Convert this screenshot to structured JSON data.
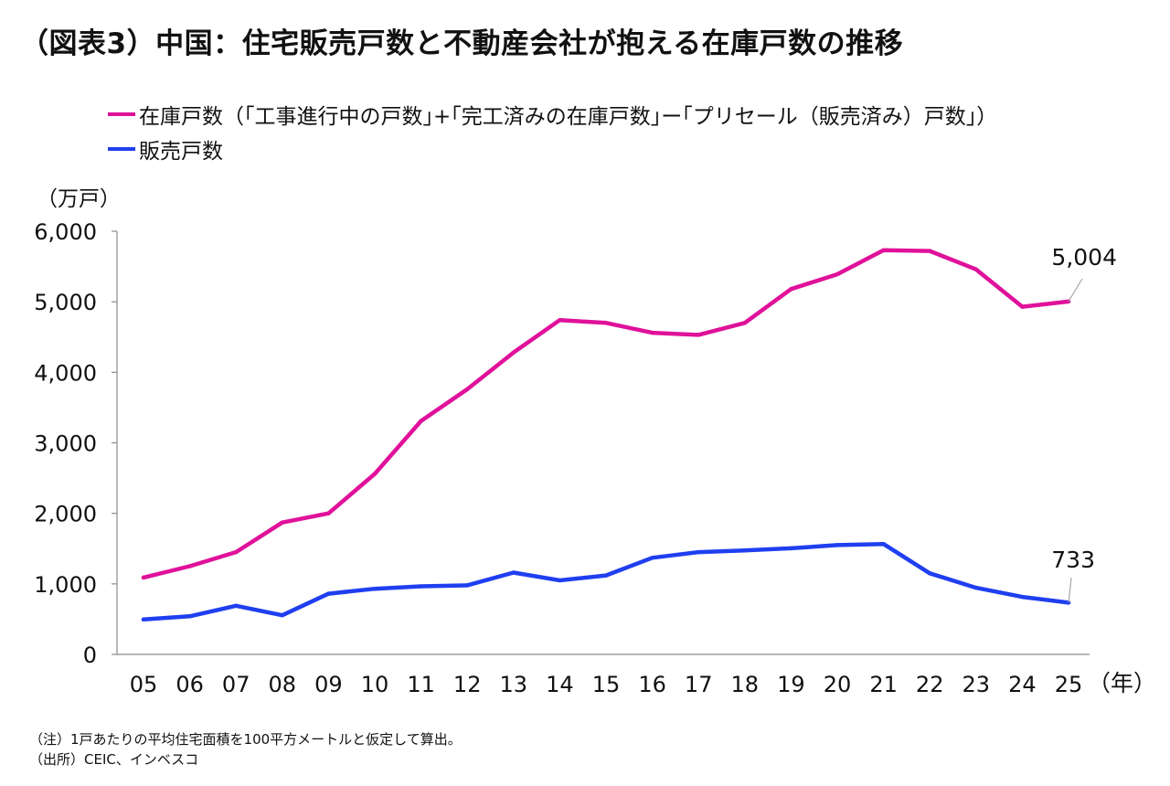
{
  "title": "（図表3）中国：住宅販売戸数と不動産会社が抱える在庫戸数の推移",
  "chart_data": {
    "type": "line",
    "categories": [
      "05",
      "06",
      "07",
      "08",
      "09",
      "10",
      "11",
      "12",
      "13",
      "14",
      "15",
      "16",
      "17",
      "18",
      "19",
      "20",
      "21",
      "22",
      "23",
      "24",
      "25"
    ],
    "series": [
      {
        "name": "在庫戸数（｢工事進行中の戸数｣+｢完工済みの在庫戸数｣ー｢プリセール（販売済み）戸数｣）",
        "color": "#e0119a",
        "values": [
          1090,
          1250,
          1450,
          1870,
          2000,
          2560,
          3310,
          3760,
          4280,
          4740,
          4700,
          4560,
          4530,
          4700,
          5180,
          5390,
          5730,
          5720,
          5460,
          4930,
          5004
        ],
        "end_label": "5,004"
      },
      {
        "name": "販売戸数",
        "color": "#1f3ff0",
        "values": [
          495,
          540,
          690,
          555,
          860,
          930,
          965,
          980,
          1160,
          1050,
          1120,
          1370,
          1450,
          1475,
          1505,
          1550,
          1565,
          1150,
          945,
          815,
          733
        ],
        "end_label": "733"
      }
    ],
    "ylabel": "（万戸）",
    "xlabel": "（年）",
    "ylim": [
      0,
      6000
    ],
    "yticks": [
      0,
      1000,
      2000,
      3000,
      4000,
      5000,
      6000
    ],
    "ytick_labels": [
      "0",
      "1,000",
      "2,000",
      "3,000",
      "4,000",
      "5,000",
      "6,000"
    ],
    "grid": false,
    "legend_position": "top-left"
  },
  "notes": {
    "note": "（注）1戸あたりの平均住宅面積を100平方メートルと仮定して算出。",
    "source": "（出所）CEIC、インベスコ"
  }
}
